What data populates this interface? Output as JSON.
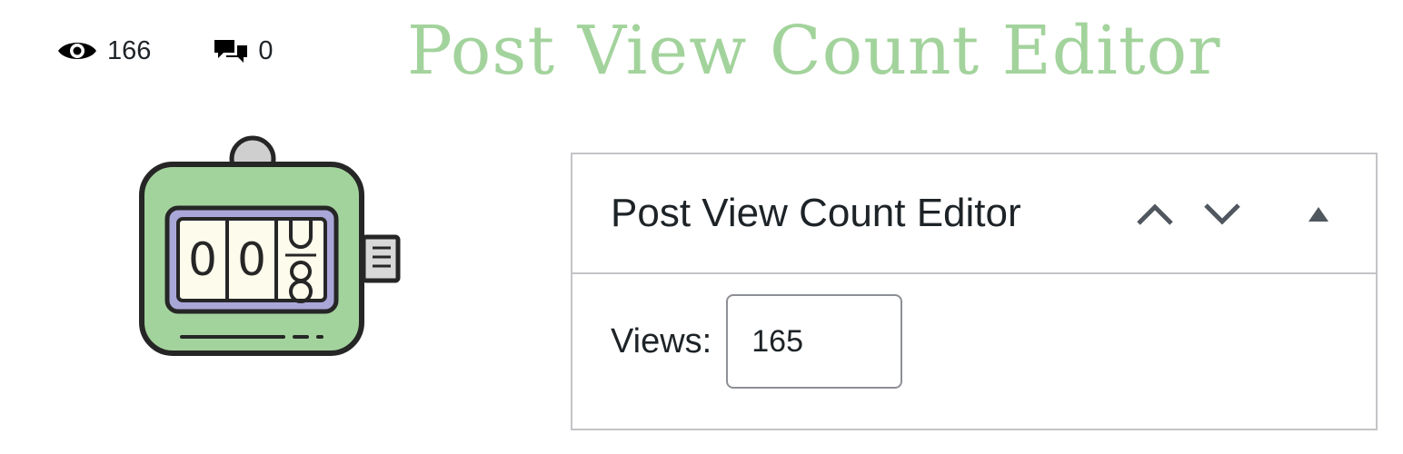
{
  "stats": {
    "views_count": "166",
    "comments_count": "0"
  },
  "banner": {
    "title": "Post View Count Editor",
    "title_color": "#a3d39c"
  },
  "illustration": {
    "digits": [
      "0",
      "0",
      "8"
    ],
    "body_color": "#a3d39c",
    "window_color": "#a9a7d8",
    "icon": "tally-counter-icon"
  },
  "metabox": {
    "title": "Post View Count Editor",
    "move_up_icon": "chevron-up-icon",
    "move_down_icon": "chevron-down-icon",
    "toggle_icon": "triangle-up-icon",
    "views_label": "Views:",
    "views_value": "165"
  }
}
